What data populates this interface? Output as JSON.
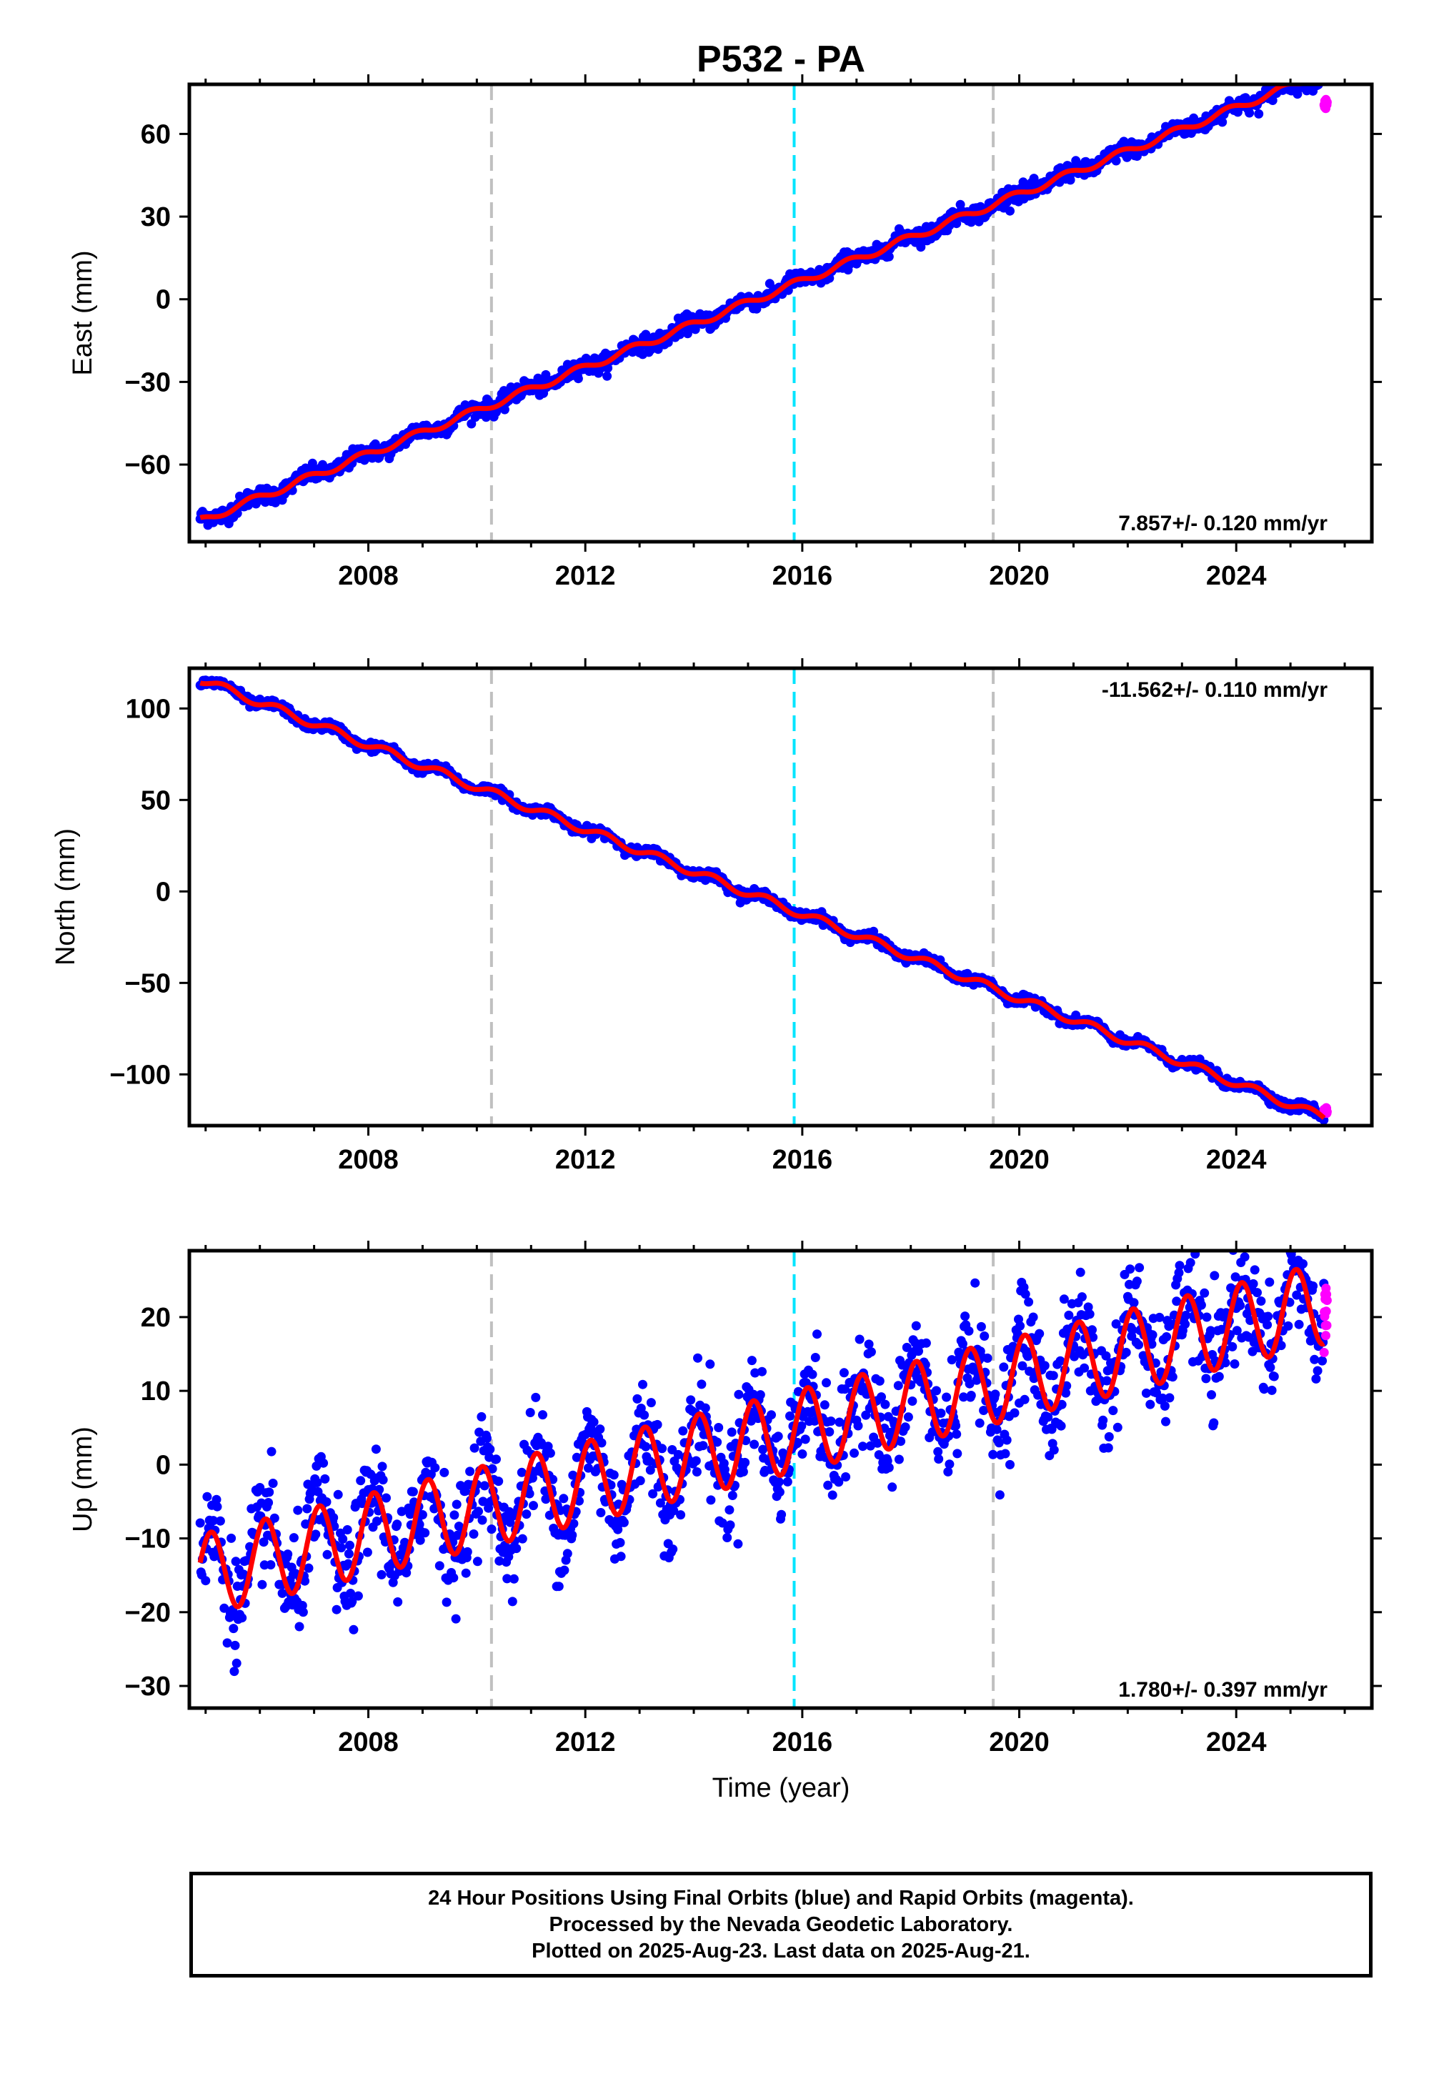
{
  "title": "P532 - PA",
  "colors": {
    "final": "#0000ff",
    "rapid": "#ff00ff",
    "model": "#ff0000",
    "equipment_change": "#c0c0c0",
    "earthquake": "#00e5ff",
    "frame": "#000000"
  },
  "xlabel": "Time (year)",
  "chart_data": [
    {
      "type": "scatter",
      "panel": "east",
      "ylabel": "East (mm)",
      "x_ticks": [
        2008,
        2012,
        2016,
        2020,
        2024
      ],
      "y_ticks": [
        60,
        30,
        0,
        -30,
        -60
      ],
      "xlim": [
        2004.7,
        2026.5
      ],
      "ylim": [
        -88,
        78
      ],
      "rate_text": "7.857+/- 0.120 mm/yr",
      "rate_position": "bottom-right",
      "trend": {
        "start": 2004.9,
        "end": 2025.62,
        "y_start": -80.5,
        "rate": 7.857
      },
      "seasonal": {
        "amplitude": 1.3,
        "phase_year": 0.6
      },
      "scatter_sd": 1.5,
      "rapid_y": 70.5,
      "vertical_lines": [
        {
          "x": 2010.27,
          "kind": "equipment"
        },
        {
          "x": 2015.85,
          "kind": "earthquake"
        },
        {
          "x": 2019.52,
          "kind": "equipment"
        }
      ]
    },
    {
      "type": "scatter",
      "panel": "north",
      "ylabel": "North (mm)",
      "x_ticks": [
        2008,
        2012,
        2016,
        2020,
        2024
      ],
      "y_ticks": [
        100,
        50,
        0,
        -50,
        -100
      ],
      "xlim": [
        2004.7,
        2026.5
      ],
      "ylim": [
        -128,
        122
      ],
      "rate_text": "-11.562+/- 0.110 mm/yr",
      "rate_position": "top-right",
      "trend": {
        "start": 2004.9,
        "end": 2025.62,
        "y_start": 116,
        "rate": -11.562
      },
      "seasonal": {
        "amplitude": 2.2,
        "phase_year": 0.1
      },
      "scatter_sd": 1.3,
      "rapid_y": -120,
      "vertical_lines": [
        {
          "x": 2010.27,
          "kind": "equipment"
        },
        {
          "x": 2015.85,
          "kind": "earthquake"
        },
        {
          "x": 2019.52,
          "kind": "equipment"
        }
      ]
    },
    {
      "type": "scatter",
      "panel": "up",
      "ylabel": "Up (mm)",
      "x_ticks": [
        2008,
        2012,
        2016,
        2020,
        2024
      ],
      "y_ticks": [
        20,
        10,
        0,
        -10,
        -20,
        -30
      ],
      "xlim": [
        2004.7,
        2026.5
      ],
      "ylim": [
        -33,
        29
      ],
      "rate_text": "1.780+/- 0.397 mm/yr",
      "rate_position": "bottom-right",
      "trend": {
        "start": 2004.9,
        "end": 2025.62,
        "y_start": -15,
        "rate": 1.78
      },
      "seasonal": {
        "amplitude": 5.5,
        "phase_year": 0.85
      },
      "scatter_sd": 3.6,
      "rapid_y": 20,
      "vertical_lines": [
        {
          "x": 2010.27,
          "kind": "equipment"
        },
        {
          "x": 2015.85,
          "kind": "earthquake"
        },
        {
          "x": 2019.52,
          "kind": "equipment"
        }
      ]
    }
  ],
  "footer": {
    "line1": "24 Hour Positions Using Final Orbits (blue) and Rapid Orbits (magenta).",
    "line2": "Processed by the Nevada Geodetic Laboratory.",
    "line3": "Plotted on 2025-Aug-23. Last data on 2025-Aug-21."
  }
}
